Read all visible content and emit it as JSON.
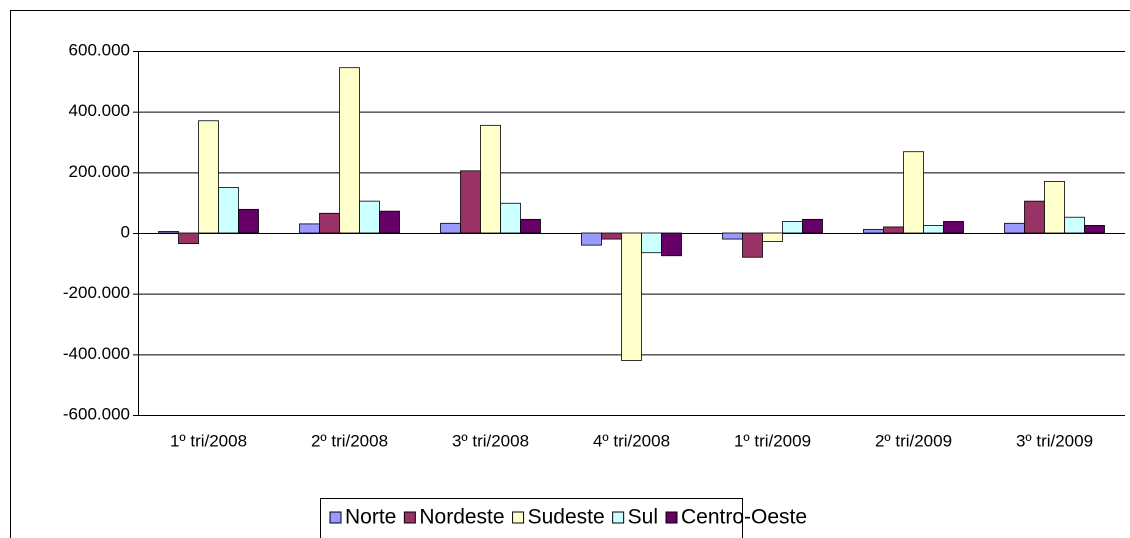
{
  "chart_data": {
    "type": "bar",
    "categories": [
      "1º tri/2008",
      "2º tri/2008",
      "3º tri/2008",
      "4º tri/2008",
      "1º tri/2009",
      "2º tri/2009",
      "3º tri/2009"
    ],
    "series": [
      {
        "name": "Norte",
        "color": "#9999ff",
        "values": [
          5000,
          30000,
          32000,
          -40000,
          -20000,
          12000,
          32000
        ]
      },
      {
        "name": "Nordeste",
        "color": "#993366",
        "values": [
          -35000,
          65000,
          205000,
          -20000,
          -80000,
          20000,
          105000
        ]
      },
      {
        "name": "Sudeste",
        "color": "#ffffcc",
        "values": [
          370000,
          545000,
          355000,
          -420000,
          -28000,
          268000,
          170000
        ]
      },
      {
        "name": "Sul",
        "color": "#ccffff",
        "values": [
          150000,
          105000,
          98000,
          -65000,
          38000,
          25000,
          52000
        ]
      },
      {
        "name": "Centro-Oeste",
        "color": "#660066",
        "values": [
          78000,
          72000,
          45000,
          -75000,
          45000,
          38000,
          25000
        ]
      }
    ],
    "ylim": [
      -600000,
      600000
    ],
    "yticks": [
      {
        "value": -600000,
        "label": "-600.000"
      },
      {
        "value": -400000,
        "label": "-400.000"
      },
      {
        "value": -200000,
        "label": "-200.000"
      },
      0,
      {
        "value": 200000,
        "label": "200.000"
      },
      {
        "value": 400000,
        "label": "400.000"
      },
      {
        "value": 600000,
        "label": "600.000"
      }
    ],
    "grid": true,
    "legend": "bottom"
  }
}
